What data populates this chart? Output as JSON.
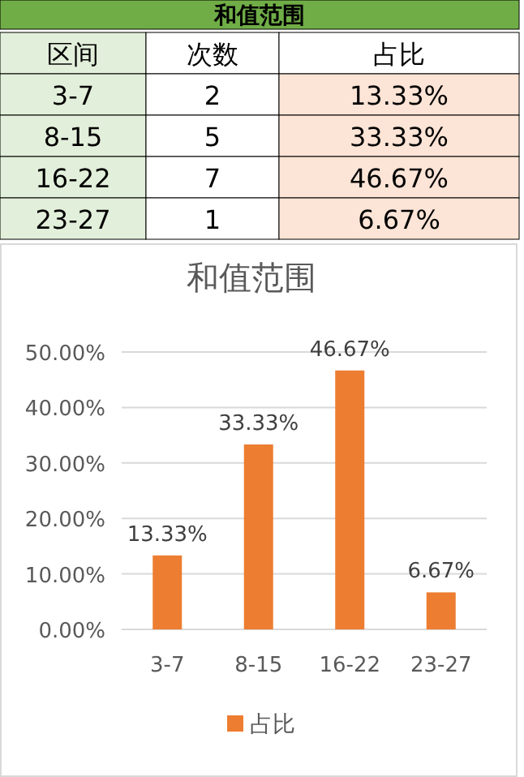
{
  "chart_data": [
    {
      "type": "other",
      "title": "和值范围",
      "annotations": [
        "区间",
        "次数",
        "占比",
        "3-7",
        "2",
        "13.33%",
        "8-15",
        "5",
        "33.33%",
        "16-22",
        "7",
        "46.67%",
        "23-27",
        "1",
        "6.67%"
      ]
    },
    {
      "type": "bar",
      "title": "和值范围",
      "categories": [
        "3-7",
        "8-15",
        "16-22",
        "23-27"
      ],
      "series": [
        {
          "name": "占比",
          "color": "#ed7d31",
          "values": [
            13.33,
            33.33,
            46.67,
            6.67
          ],
          "value_labels": [
            "13.33%",
            "33.33%",
            "46.67%",
            "6.67%"
          ]
        }
      ],
      "ylim": [
        0,
        50
      ],
      "yticks": [
        {
          "value": 0,
          "label": "0.00%"
        },
        {
          "value": 10,
          "label": "10.00%"
        },
        {
          "value": 20,
          "label": "20.00%"
        },
        {
          "value": 30,
          "label": "30.00%"
        },
        {
          "value": 40,
          "label": "40.00%"
        },
        {
          "value": 50,
          "label": "50.00%"
        }
      ],
      "grid": "y",
      "legend": "bottom"
    }
  ]
}
